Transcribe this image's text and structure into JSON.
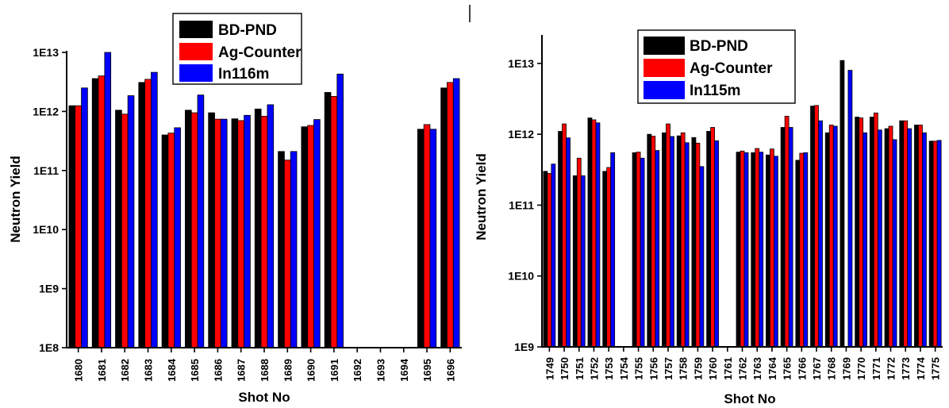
{
  "colors": {
    "BD-PND": "#000000",
    "Ag-Counter": "#ff0000",
    "In115m": "#0000ff",
    "In116m": "#0000ff"
  },
  "chart_data": [
    {
      "type": "bar",
      "xlabel": "Shot No",
      "ylabel": "Neutron Yield",
      "yscale": "log",
      "ylim": [
        100000000.0,
        10000000000000.0
      ],
      "yticks": [
        "1E8",
        "1E9",
        "1E10",
        "1E11",
        "1E12",
        "1E13"
      ],
      "legend_position": "top-center",
      "categories": [
        "1680",
        "1681",
        "1682",
        "1683",
        "1684",
        "1685",
        "1686",
        "1687",
        "1688",
        "1689",
        "1690",
        "1691",
        "1692",
        "1693",
        "1694",
        "1695",
        "1696"
      ],
      "series": [
        {
          "name": "BD-PND",
          "values": [
            1250000000000.0,
            3600000000000.0,
            1050000000000.0,
            3100000000000.0,
            400000000000.0,
            1050000000000.0,
            950000000000.0,
            750000000000.0,
            1100000000000.0,
            210000000000.0,
            550000000000.0,
            2100000000000.0,
            null,
            null,
            null,
            500000000000.0,
            2500000000000.0
          ]
        },
        {
          "name": "Ag-Counter",
          "values": [
            1250000000000.0,
            4000000000000.0,
            900000000000.0,
            3500000000000.0,
            430000000000.0,
            950000000000.0,
            740000000000.0,
            700000000000.0,
            830000000000.0,
            150000000000.0,
            580000000000.0,
            1800000000000.0,
            null,
            null,
            null,
            600000000000.0,
            3100000000000.0
          ]
        },
        {
          "name": "In116m",
          "values": [
            2500000000000.0,
            10000000000000.0,
            1850000000000.0,
            4600000000000.0,
            530000000000.0,
            1900000000000.0,
            740000000000.0,
            860000000000.0,
            1300000000000.0,
            210000000000.0,
            730000000000.0,
            4300000000000.0,
            null,
            null,
            null,
            500000000000.0,
            3600000000000.0
          ]
        }
      ]
    },
    {
      "type": "bar",
      "xlabel": "Shot No",
      "ylabel": "Neutron Yield",
      "yscale": "log",
      "ylim": [
        1000000000.0,
        20000000000000.0
      ],
      "yticks": [
        "1E9",
        "1E10",
        "1E11",
        "1E12",
        "1E13"
      ],
      "legend_position": "top-center",
      "categories": [
        "1749",
        "1750",
        "1751",
        "1752",
        "1753",
        "1754",
        "1755",
        "1756",
        "1757",
        "1758",
        "1759",
        "1760",
        "1761",
        "1762",
        "1763",
        "1764",
        "1765",
        "1766",
        "1767",
        "1768",
        "1769",
        "1770",
        "1771",
        "1772",
        "1773",
        "1774",
        "1775"
      ],
      "series": [
        {
          "name": "BD-PND",
          "values": [
            300000000000.0,
            1100000000000.0,
            260000000000.0,
            1700000000000.0,
            300000000000.0,
            null,
            550000000000.0,
            1000000000000.0,
            1050000000000.0,
            950000000000.0,
            900000000000.0,
            1100000000000.0,
            null,
            560000000000.0,
            550000000000.0,
            510000000000.0,
            1250000000000.0,
            430000000000.0,
            2500000000000.0,
            1050000000000.0,
            11000000000000.0,
            1750000000000.0,
            1750000000000.0,
            1200000000000.0,
            1550000000000.0,
            1350000000000.0,
            800000000000.0
          ]
        },
        {
          "name": "Ag-Counter",
          "values": [
            280000000000.0,
            1400000000000.0,
            460000000000.0,
            1600000000000.0,
            340000000000.0,
            null,
            560000000000.0,
            940000000000.0,
            1400000000000.0,
            1050000000000.0,
            750000000000.0,
            1250000000000.0,
            null,
            580000000000.0,
            630000000000.0,
            620000000000.0,
            1800000000000.0,
            540000000000.0,
            2550000000000.0,
            1350000000000.0,
            null,
            1700000000000.0,
            2000000000000.0,
            1300000000000.0,
            1550000000000.0,
            1350000000000.0,
            800000000000.0
          ]
        },
        {
          "name": "In115m",
          "values": [
            380000000000.0,
            890000000000.0,
            260000000000.0,
            1450000000000.0,
            550000000000.0,
            null,
            460000000000.0,
            590000000000.0,
            930000000000.0,
            760000000000.0,
            350000000000.0,
            810000000000.0,
            null,
            550000000000.0,
            560000000000.0,
            490000000000.0,
            1250000000000.0,
            550000000000.0,
            1550000000000.0,
            1300000000000.0,
            8000000000000.0,
            1050000000000.0,
            1150000000000.0,
            840000000000.0,
            1200000000000.0,
            1050000000000.0,
            820000000000.0
          ]
        }
      ]
    }
  ]
}
